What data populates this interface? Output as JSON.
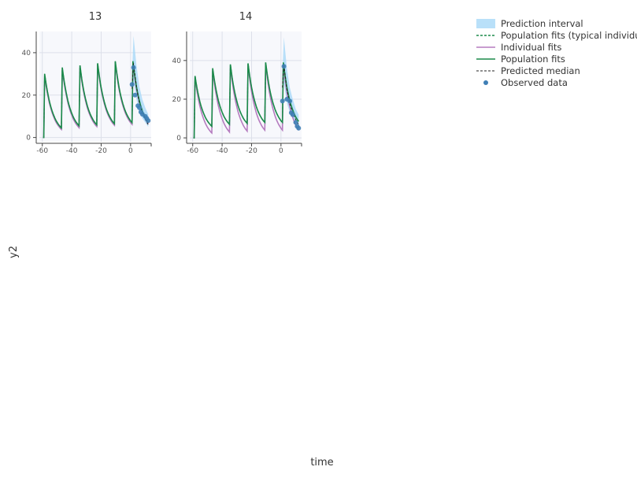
{
  "chart_data": {
    "type": "line",
    "xlabel": "time",
    "ylabel": "y2",
    "legend_position": "top-right",
    "grid": true,
    "colors": {
      "prediction_interval": "#a8d8f8",
      "population_typical": "#1b8a4a",
      "individual_fits": "#b57bbf",
      "population_fits": "#1b8a4a",
      "predicted_median": "#222222",
      "observed": "#3f7fb5",
      "panel_bg": "#f7f8fc",
      "grid": "#dde0ea"
    },
    "legend": [
      {
        "key": "prediction_interval",
        "label": "Prediction interval",
        "style": "band"
      },
      {
        "key": "population_typical",
        "label": "Population fits (typical individual)",
        "style": "dashed"
      },
      {
        "key": "individual_fits",
        "label": "Individual fits",
        "style": "solid"
      },
      {
        "key": "population_fits",
        "label": "Population fits",
        "style": "solid"
      },
      {
        "key": "predicted_median",
        "label": "Predicted median",
        "style": "dashed"
      },
      {
        "key": "observed",
        "label": "Observed data",
        "style": "dot"
      }
    ],
    "panels": [
      {
        "title": "13",
        "xlim": [
          -62,
          14
        ],
        "ylim": [
          -2,
          50
        ],
        "xticks": [
          -60,
          -40,
          -20,
          0
        ],
        "yticks": [
          0,
          20,
          40
        ],
        "dose_times": [
          -59,
          -47,
          -35,
          -23,
          -11,
          1
        ],
        "population": {
          "peak": [
            30,
            33,
            34,
            35,
            36,
            36
          ],
          "trough": [
            4.5,
            5.5,
            6,
            6.5,
            7,
            7
          ]
        },
        "individual": {
          "peak": [
            29,
            32,
            33,
            34,
            35,
            35
          ],
          "trough": [
            3.8,
            4.6,
            5.2,
            5.8,
            6.2,
            6.5
          ]
        },
        "interval": {
          "x": [
            1,
            2,
            4,
            6,
            8,
            10,
            12
          ],
          "lower": [
            20,
            26,
            18,
            12,
            9,
            7,
            5
          ],
          "upper": [
            30,
            48,
            34,
            24,
            18,
            14,
            11
          ]
        },
        "observed": {
          "x": [
            1,
            2,
            3,
            5,
            6,
            7,
            8,
            10,
            11,
            12
          ],
          "y": [
            25,
            33,
            20,
            15,
            14,
            12,
            11,
            10,
            9,
            8
          ]
        }
      },
      {
        "title": "14",
        "xlim": [
          -62,
          14
        ],
        "ylim": [
          -2,
          55
        ],
        "xticks": [
          -60,
          -40,
          -20,
          0
        ],
        "yticks": [
          0,
          20,
          40
        ],
        "dose_times": [
          -59,
          -47,
          -35,
          -23,
          -11,
          1
        ],
        "population": {
          "peak": [
            32,
            36,
            38,
            38.5,
            39,
            39
          ],
          "trough": [
            6,
            7,
            7.5,
            8,
            8,
            8.5
          ]
        },
        "individual": {
          "peak": [
            31,
            35,
            37,
            37.5,
            38,
            38
          ],
          "trough": [
            2.5,
            3,
            3.5,
            4,
            4,
            4
          ]
        },
        "interval": {
          "x": [
            1,
            2,
            4,
            6,
            8,
            10,
            12
          ],
          "lower": [
            22,
            28,
            18,
            13,
            10,
            8,
            6
          ],
          "upper": [
            34,
            52,
            36,
            26,
            20,
            15,
            12
          ]
        },
        "observed": {
          "x": [
            1,
            2,
            4,
            6,
            7,
            8,
            10,
            11,
            12
          ],
          "y": [
            19,
            37,
            20,
            19,
            13,
            12,
            8,
            6,
            5
          ]
        }
      }
    ]
  }
}
